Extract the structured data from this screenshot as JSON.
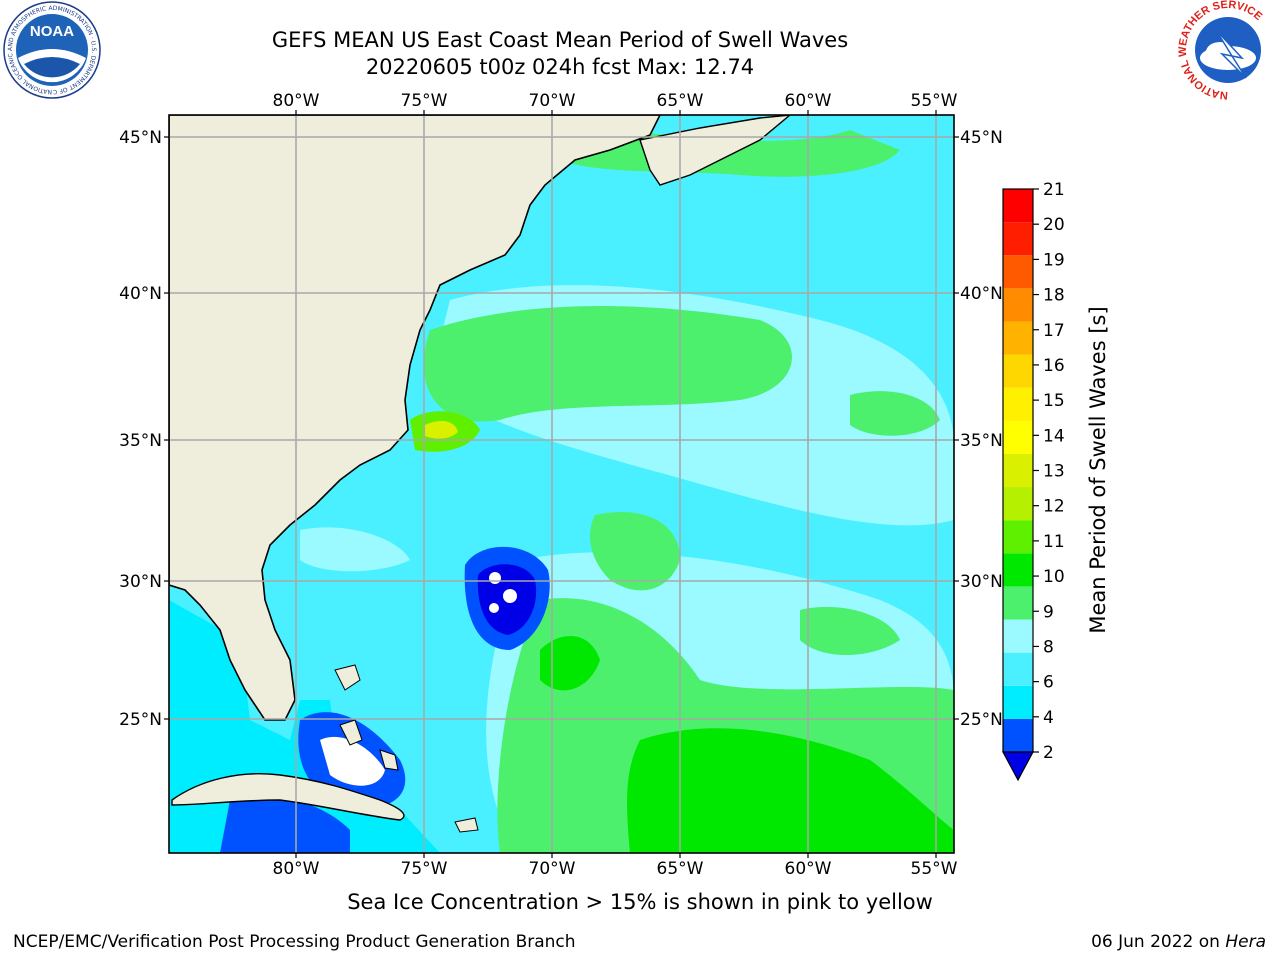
{
  "header": {
    "title_line1": "GEFS MEAN US East Coast Mean Period of Swell Waves",
    "title_line2": "20220605 t00z 024h fcst   Max: 12.74"
  },
  "logos": {
    "left_text": "NOAA",
    "left_ring": "NATIONAL OCEANIC AND ATMOSPHERIC ADMINISTRATION · U.S. DEPARTMENT OF COMMERCE",
    "right_ring": "NATIONAL WEATHER SERVICE"
  },
  "map": {
    "lon_labels": [
      "80°W",
      "75°W",
      "70°W",
      "65°W",
      "60°W",
      "55°W"
    ],
    "lat_labels": [
      "45°N",
      "40°N",
      "35°N",
      "30°N",
      "25°N"
    ],
    "land_color": "#efeedc",
    "grid_color": "#a8a8a8"
  },
  "colorbar": {
    "label": "Mean Period of Swell Waves [s]",
    "ticks": [
      "2",
      "4",
      "6",
      "8",
      "9",
      "10",
      "11",
      "12",
      "13",
      "14",
      "15",
      "16",
      "17",
      "18",
      "19",
      "20",
      "21"
    ],
    "colors": [
      "#0051ff",
      "#00ecff",
      "#4af0ff",
      "#9afaff",
      "#4cf06c",
      "#00e800",
      "#5ff000",
      "#b4f000",
      "#d9f000",
      "#ffff00",
      "#fff000",
      "#ffd700",
      "#ffb300",
      "#ff8c00",
      "#ff5a00",
      "#ff1e00",
      "#ff0000"
    ],
    "under_color": "#0000e6"
  },
  "footer": {
    "note": "Sea Ice Concentration > 15% is shown in pink to yellow",
    "left": "NCEP/EMC/Verification Post Processing Product Generation Branch",
    "right_prefix": "06 Jun 2022 on ",
    "right_machine": "Hera"
  }
}
